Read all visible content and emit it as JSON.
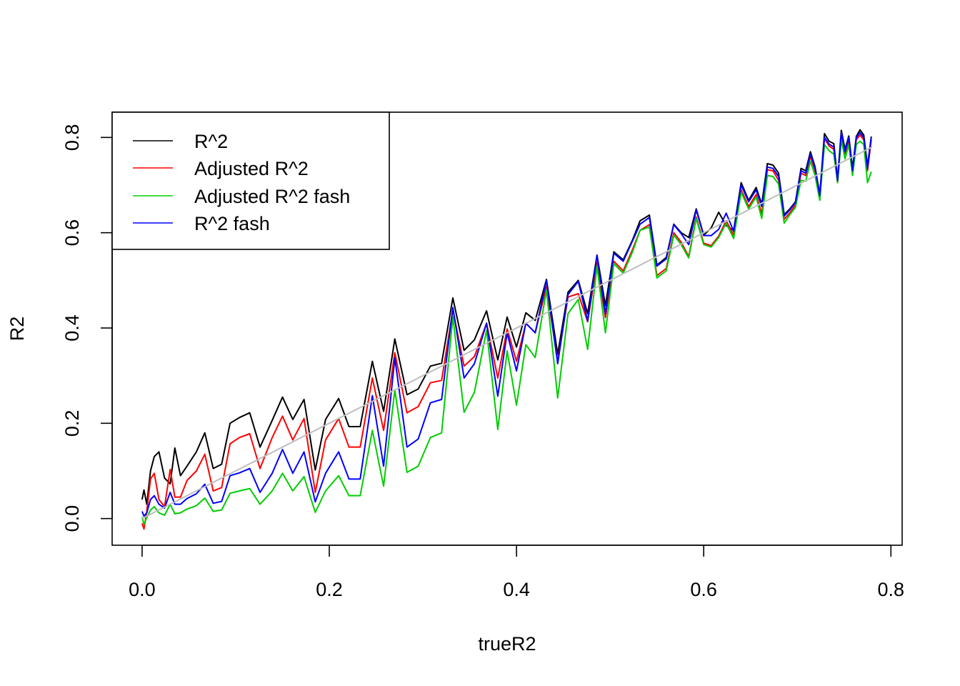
{
  "chart_data": {
    "type": "line",
    "title": "",
    "xlabel": "trueR2",
    "ylabel": "R2",
    "xlim": [
      -0.032,
      0.812
    ],
    "ylim": [
      -0.056,
      0.853
    ],
    "xticks": [
      0.0,
      0.2,
      0.4,
      0.6,
      0.8
    ],
    "yticks": [
      0.0,
      0.2,
      0.4,
      0.6,
      0.8
    ],
    "xtick_labels": [
      "0.0",
      "0.2",
      "0.4",
      "0.6",
      "0.8"
    ],
    "ytick_labels": [
      "0.0",
      "0.2",
      "0.4",
      "0.6",
      "0.8"
    ],
    "grid": false,
    "legend_position": "top-left",
    "x": [
      0.0,
      0.002,
      0.005,
      0.009,
      0.013,
      0.018,
      0.024,
      0.03,
      0.035,
      0.041,
      0.048,
      0.058,
      0.067,
      0.076,
      0.085,
      0.094,
      0.104,
      0.115,
      0.126,
      0.139,
      0.15,
      0.161,
      0.173,
      0.185,
      0.196,
      0.21,
      0.221,
      0.233,
      0.246,
      0.258,
      0.27,
      0.283,
      0.295,
      0.308,
      0.32,
      0.332,
      0.344,
      0.355,
      0.368,
      0.38,
      0.39,
      0.4,
      0.41,
      0.42,
      0.432,
      0.444,
      0.455,
      0.466,
      0.476,
      0.486,
      0.495,
      0.504,
      0.514,
      0.524,
      0.532,
      0.542,
      0.55,
      0.56,
      0.568,
      0.576,
      0.584,
      0.592,
      0.6,
      0.608,
      0.616,
      0.624,
      0.632,
      0.64,
      0.648,
      0.656,
      0.662,
      0.668,
      0.674,
      0.68,
      0.686,
      0.692,
      0.698,
      0.704,
      0.709,
      0.714,
      0.719,
      0.724,
      0.729,
      0.734,
      0.739,
      0.743,
      0.747,
      0.751,
      0.755,
      0.759,
      0.763,
      0.767,
      0.771,
      0.775,
      0.779
    ],
    "series": [
      {
        "name": "R^2",
        "color": "#000000",
        "values": [
          0.04,
          0.06,
          0.03,
          0.1,
          0.13,
          0.14,
          0.085,
          0.073,
          0.148,
          0.09,
          0.11,
          0.14,
          0.18,
          0.105,
          0.114,
          0.2,
          0.212,
          0.222,
          0.15,
          0.206,
          0.255,
          0.208,
          0.25,
          0.102,
          0.208,
          0.252,
          0.193,
          0.193,
          0.33,
          0.225,
          0.377,
          0.26,
          0.272,
          0.32,
          0.326,
          0.463,
          0.353,
          0.375,
          0.436,
          0.333,
          0.423,
          0.36,
          0.432,
          0.416,
          0.502,
          0.345,
          0.475,
          0.5,
          0.43,
          0.553,
          0.447,
          0.56,
          0.543,
          0.585,
          0.625,
          0.637,
          0.532,
          0.548,
          0.618,
          0.6,
          0.59,
          0.65,
          0.595,
          0.61,
          0.643,
          0.615,
          0.605,
          0.705,
          0.668,
          0.695,
          0.66,
          0.745,
          0.742,
          0.725,
          0.638,
          0.65,
          0.665,
          0.735,
          0.73,
          0.77,
          0.738,
          0.68,
          0.808,
          0.792,
          0.787,
          0.712,
          0.815,
          0.775,
          0.803,
          0.735,
          0.802,
          0.816,
          0.805,
          0.74,
          0.802
        ]
      },
      {
        "name": "Adjusted R^2",
        "color": "#ff0000",
        "values": [
          -0.01,
          -0.022,
          0.015,
          0.083,
          0.095,
          0.04,
          0.025,
          0.103,
          0.045,
          0.045,
          0.08,
          0.1,
          0.135,
          0.058,
          0.065,
          0.157,
          0.17,
          0.178,
          0.105,
          0.17,
          0.215,
          0.165,
          0.21,
          0.055,
          0.165,
          0.21,
          0.15,
          0.15,
          0.295,
          0.185,
          0.348,
          0.222,
          0.235,
          0.285,
          0.29,
          0.438,
          0.32,
          0.34,
          0.41,
          0.295,
          0.398,
          0.33,
          0.41,
          0.39,
          0.487,
          0.33,
          0.465,
          0.472,
          0.413,
          0.538,
          0.422,
          0.54,
          0.52,
          0.565,
          0.605,
          0.617,
          0.51,
          0.525,
          0.6,
          0.58,
          0.55,
          0.633,
          0.578,
          0.573,
          0.593,
          0.625,
          0.595,
          0.69,
          0.655,
          0.68,
          0.64,
          0.732,
          0.73,
          0.71,
          0.628,
          0.642,
          0.658,
          0.725,
          0.72,
          0.76,
          0.73,
          0.672,
          0.798,
          0.782,
          0.775,
          0.705,
          0.802,
          0.765,
          0.795,
          0.728,
          0.795,
          0.805,
          0.795,
          0.73,
          0.795
        ]
      },
      {
        "name": "Adjusted R^2 fash",
        "color": "#00cd00",
        "values": [
          0.003,
          -0.012,
          0.002,
          0.018,
          0.025,
          0.012,
          0.007,
          0.03,
          0.01,
          0.012,
          0.02,
          0.027,
          0.043,
          0.015,
          0.018,
          0.053,
          0.058,
          0.063,
          0.03,
          0.058,
          0.095,
          0.058,
          0.088,
          0.013,
          0.058,
          0.09,
          0.048,
          0.048,
          0.185,
          0.068,
          0.27,
          0.097,
          0.11,
          0.17,
          0.18,
          0.423,
          0.223,
          0.265,
          0.395,
          0.187,
          0.352,
          0.238,
          0.365,
          0.338,
          0.48,
          0.253,
          0.43,
          0.46,
          0.355,
          0.53,
          0.39,
          0.535,
          0.515,
          0.56,
          0.605,
          0.612,
          0.505,
          0.52,
          0.595,
          0.575,
          0.547,
          0.63,
          0.575,
          0.57,
          0.59,
          0.62,
          0.588,
          0.685,
          0.65,
          0.675,
          0.63,
          0.72,
          0.718,
          0.702,
          0.62,
          0.638,
          0.653,
          0.71,
          0.708,
          0.75,
          0.72,
          0.668,
          0.785,
          0.772,
          0.765,
          0.705,
          0.795,
          0.755,
          0.785,
          0.72,
          0.785,
          0.792,
          0.785,
          0.705,
          0.728
        ]
      },
      {
        "name": "R^2 fash",
        "color": "#0000ff",
        "values": [
          0.015,
          0.005,
          0.012,
          0.04,
          0.048,
          0.03,
          0.022,
          0.055,
          0.03,
          0.03,
          0.042,
          0.052,
          0.072,
          0.032,
          0.036,
          0.09,
          0.096,
          0.105,
          0.055,
          0.095,
          0.145,
          0.095,
          0.14,
          0.035,
          0.095,
          0.14,
          0.083,
          0.083,
          0.258,
          0.11,
          0.337,
          0.15,
          0.167,
          0.243,
          0.25,
          0.443,
          0.295,
          0.325,
          0.41,
          0.257,
          0.39,
          0.31,
          0.41,
          0.39,
          0.5,
          0.325,
          0.47,
          0.498,
          0.415,
          0.553,
          0.43,
          0.557,
          0.54,
          0.583,
          0.618,
          0.632,
          0.53,
          0.545,
          0.617,
          0.598,
          0.575,
          0.648,
          0.594,
          0.594,
          0.607,
          0.641,
          0.603,
          0.7,
          0.665,
          0.69,
          0.655,
          0.738,
          0.735,
          0.718,
          0.635,
          0.648,
          0.663,
          0.73,
          0.725,
          0.765,
          0.735,
          0.678,
          0.8,
          0.786,
          0.78,
          0.71,
          0.81,
          0.77,
          0.8,
          0.73,
          0.8,
          0.81,
          0.8,
          0.735,
          0.8
        ]
      }
    ],
    "reference_line": {
      "name": "y = x",
      "color": "#bebebe",
      "x": [
        0.0,
        0.78
      ],
      "y": [
        0.0,
        0.78
      ]
    },
    "legend": [
      {
        "label": "R^2",
        "color": "#000000"
      },
      {
        "label": "Adjusted R^2",
        "color": "#ff0000"
      },
      {
        "label": "Adjusted R^2 fash",
        "color": "#00cd00"
      },
      {
        "label": "R^2 fash",
        "color": "#0000ff"
      }
    ]
  }
}
